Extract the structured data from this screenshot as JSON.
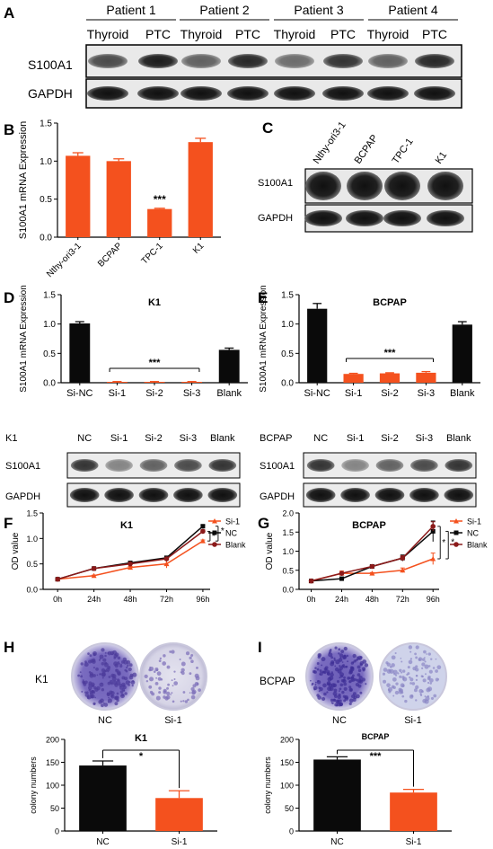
{
  "colors": {
    "orange": "#f4511e",
    "black": "#0a0a0a",
    "darkred": "#8b1a1a",
    "blot": "#1b1b1b",
    "purple": "#5a4aa8",
    "lightpurple": "#9e9ad0"
  },
  "panelA": {
    "letter": "A",
    "patients": [
      "Patient 1",
      "Patient 2",
      "Patient 3",
      "Patient 4"
    ],
    "lanes": [
      "Thyroid",
      "PTC",
      "Thyroid",
      "PTC",
      "Thyroid",
      "PTC",
      "Thyroid",
      "PTC"
    ],
    "rows": [
      "S100A1",
      "GAPDH"
    ]
  },
  "panelB": {
    "letter": "B",
    "chart_data": {
      "type": "bar",
      "categories": [
        "Nthy-ori3-1",
        "BCPAP",
        "TPC-1",
        "K1"
      ],
      "values": [
        1.07,
        1.0,
        0.37,
        1.25
      ],
      "errors": [
        0.04,
        0.03,
        0.01,
        0.05
      ],
      "ylabel": "S100A1 mRNA Expression",
      "ylim": [
        0,
        1.5
      ],
      "yticks": [
        "0.0",
        "0.5",
        "1.0",
        "1.5"
      ],
      "annotation": "***"
    }
  },
  "panelC": {
    "letter": "C",
    "lanes": [
      "Nthy-ori3-1",
      "BCPAP",
      "TPC-1",
      "K1"
    ],
    "rows": [
      "S100A1",
      "GAPDH"
    ]
  },
  "panelD": {
    "letter": "D",
    "chart_data": {
      "type": "bar",
      "title": "K1",
      "categories": [
        "Si-NC",
        "Si-1",
        "Si-2",
        "Si-3",
        "Blank"
      ],
      "values": [
        1.01,
        0.015,
        0.015,
        0.015,
        0.56
      ],
      "errors": [
        0.03,
        0.005,
        0.005,
        0.005,
        0.03
      ],
      "ylabel": "S100A1 mRNA  Expression",
      "ylim": [
        0,
        1.5
      ],
      "yticks": [
        "0.0",
        "0.5",
        "1.0",
        "1.5"
      ],
      "annotation": "***"
    },
    "blot": {
      "cell": "K1",
      "lanes": [
        "NC",
        "Si-1",
        "Si-2",
        "Si-3",
        "Blank"
      ],
      "rows": [
        "S100A1",
        "GAPDH"
      ]
    }
  },
  "panelE": {
    "letter": "E",
    "chart_data": {
      "type": "bar",
      "title": "BCPAP",
      "categories": [
        "Si-NC",
        "Si-1",
        "Si-2",
        "Si-3",
        "Blank"
      ],
      "values": [
        1.26,
        0.15,
        0.16,
        0.17,
        0.99
      ],
      "errors": [
        0.09,
        0.01,
        0.01,
        0.02,
        0.05
      ],
      "ylabel": "S100A1 mRNA Expression",
      "ylim": [
        0,
        1.5
      ],
      "yticks": [
        "0.0",
        "0.5",
        "1.0",
        "1.5"
      ],
      "annotation": "***"
    },
    "blot": {
      "cell": "BCPAP",
      "lanes": [
        "NC",
        "Si-1",
        "Si-2",
        "Si-3",
        "Blank"
      ],
      "rows": [
        "S100A1",
        "GAPDH"
      ]
    }
  },
  "panelF": {
    "letter": "F",
    "chart_data": {
      "type": "line",
      "title": "K1",
      "x": [
        "0h",
        "24h",
        "48h",
        "72h",
        "96h"
      ],
      "ylabel": "OD value",
      "ylim": [
        0,
        1.5
      ],
      "yticks": [
        "0.0",
        "0.5",
        "1.0",
        "1.5"
      ],
      "series": [
        {
          "name": "Si-1",
          "values": [
            0.2,
            0.27,
            0.43,
            0.5,
            0.95
          ],
          "errors": [
            0.01,
            0.01,
            0.02,
            0.08,
            0.02
          ]
        },
        {
          "name": "NC",
          "values": [
            0.2,
            0.41,
            0.52,
            0.62,
            1.24
          ],
          "errors": [
            0.01,
            0.01,
            0.01,
            0.03,
            0.02
          ]
        },
        {
          "name": "Blank",
          "values": [
            0.2,
            0.41,
            0.5,
            0.6,
            1.14
          ],
          "errors": [
            0.01,
            0.01,
            0.01,
            0.02,
            0.03
          ]
        }
      ],
      "annotations": [
        "*",
        "*"
      ]
    }
  },
  "panelG": {
    "letter": "G",
    "chart_data": {
      "type": "line",
      "title": "BCPAP",
      "x": [
        "0h",
        "24h",
        "48h",
        "72h",
        "96h"
      ],
      "ylabel": "OD value",
      "ylim": [
        0,
        2.0
      ],
      "yticks": [
        "0.0",
        "0.5",
        "1.0",
        "1.5",
        "2.0"
      ],
      "series": [
        {
          "name": "Si-1",
          "values": [
            0.22,
            0.42,
            0.42,
            0.5,
            0.8
          ],
          "errors": [
            0.01,
            0.06,
            0.02,
            0.06,
            0.15
          ]
        },
        {
          "name": "NC",
          "values": [
            0.22,
            0.28,
            0.6,
            0.82,
            1.52
          ],
          "errors": [
            0.01,
            0.02,
            0.03,
            0.08,
            0.27
          ]
        },
        {
          "name": "Blank",
          "values": [
            0.22,
            0.42,
            0.6,
            0.82,
            1.65
          ],
          "errors": [
            0.01,
            0.02,
            0.03,
            0.06,
            0.12
          ]
        }
      ],
      "annotations": [
        "*",
        "*"
      ]
    }
  },
  "panelH": {
    "letter": "H",
    "cell": "K1",
    "dishes": [
      "NC",
      "Si-1"
    ],
    "chart_data": {
      "type": "bar",
      "title": "K1",
      "categories": [
        "NC",
        "Si-1"
      ],
      "values": [
        143,
        72
      ],
      "errors": [
        10,
        16
      ],
      "ylabel": "colony numbers",
      "ylim": [
        0,
        200
      ],
      "yticks": [
        "0",
        "50",
        "100",
        "150",
        "200"
      ],
      "annotation": "*"
    }
  },
  "panelI": {
    "letter": "I",
    "cell": "BCPAP",
    "dishes": [
      "NC",
      "Si-1"
    ],
    "chart_data": {
      "type": "bar",
      "title": "BCPAP",
      "categories": [
        "NC",
        "Si-1"
      ],
      "values": [
        156,
        84
      ],
      "errors": [
        6,
        7
      ],
      "ylabel": "colony numbers",
      "ylim": [
        0,
        200
      ],
      "yticks": [
        "0",
        "50",
        "100",
        "150",
        "200"
      ],
      "annotation": "***"
    }
  }
}
